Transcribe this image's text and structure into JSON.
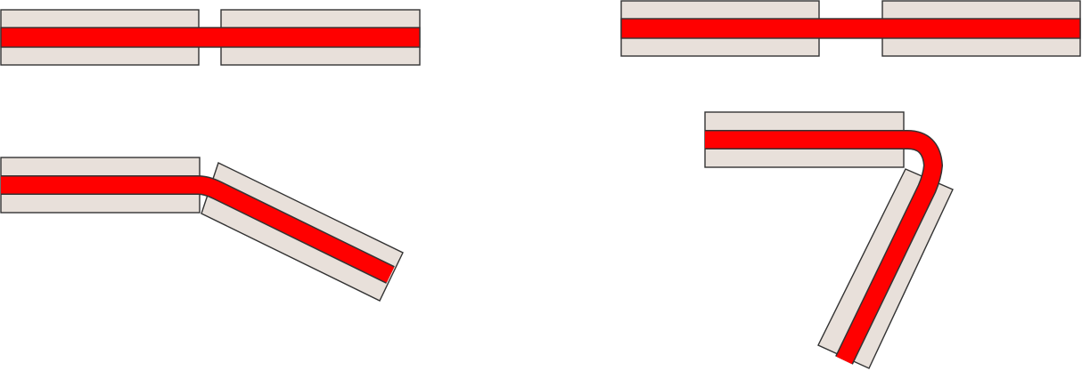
{
  "colors": {
    "plate_fill": "#e8e0da",
    "strip": "#ff0000",
    "outline": "#333333",
    "background": "#ffffff"
  },
  "panels": [
    {
      "id": "straight-small-gap"
    },
    {
      "id": "straight-wide-gap"
    },
    {
      "id": "gentle-bend"
    },
    {
      "id": "sharp-bend"
    }
  ]
}
